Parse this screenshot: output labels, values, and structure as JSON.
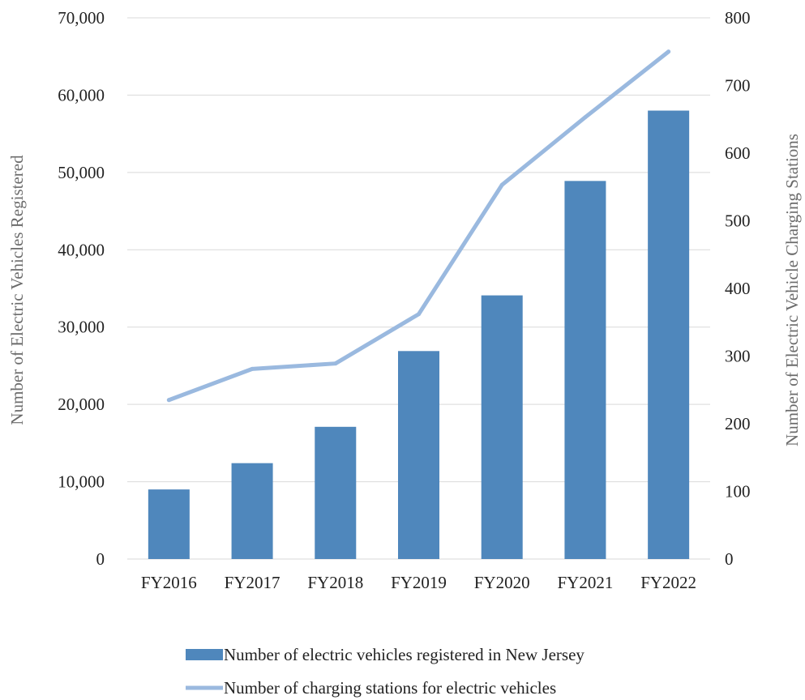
{
  "chart_data": {
    "type": "bar",
    "categories": [
      "FY2016",
      "FY2017",
      "FY2018",
      "FY2019",
      "FY2020",
      "FY2021",
      "FY2022"
    ],
    "series": [
      {
        "name": "Number of electric vehicles registered in New Jersey",
        "type": "bar",
        "axis": "left",
        "values": [
          9000,
          12400,
          17100,
          26900,
          34100,
          48900,
          58000
        ]
      },
      {
        "name": "Number of charging stations for electric vehicles",
        "type": "line",
        "axis": "right",
        "values": [
          235,
          281,
          289,
          362,
          553,
          653,
          750
        ]
      }
    ],
    "ylabel": "Number of Electric Vehicles Registered",
    "y2label": "Number of Electric Vehicle Charging Stations",
    "ylim": [
      0,
      70000
    ],
    "y2lim": [
      0,
      800
    ],
    "yticks": [
      "0",
      "10,000",
      "20,000",
      "30,000",
      "40,000",
      "50,000",
      "60,000",
      "70,000"
    ],
    "y2ticks": [
      "0",
      "100",
      "200",
      "300",
      "400",
      "500",
      "600",
      "700",
      "800"
    ],
    "grid": true,
    "legend": "bottom",
    "colors": {
      "bar": "#4f87bc",
      "line": "#9ab9df"
    }
  }
}
